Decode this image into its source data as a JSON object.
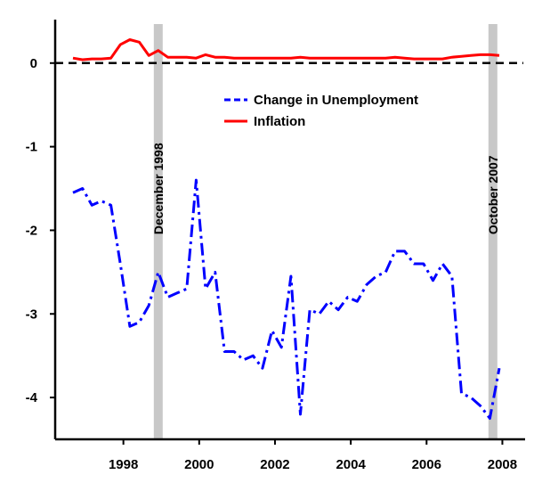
{
  "chart_data": {
    "type": "line",
    "title": "",
    "xlabel": "",
    "ylabel": "",
    "xlim": [
      1996.2,
      2008.6
    ],
    "ylim": [
      -4.5,
      0.52
    ],
    "x_ticks": [
      1998,
      2000,
      2002,
      2004,
      2006,
      2008
    ],
    "y_ticks": [
      0,
      -1,
      -2,
      -3,
      -4
    ],
    "y_tick_labels": [
      "0",
      "-1",
      "-2",
      "-3",
      "-4"
    ],
    "grid": false,
    "zero_line": {
      "y": 0,
      "style": "dashed",
      "color": "#000000"
    },
    "events": [
      {
        "label": "December 1998",
        "x": 1998.92
      },
      {
        "label": "October 2007",
        "x": 2007.75
      }
    ],
    "legend": {
      "placement": "top-center",
      "items": [
        {
          "label": "Change in Unemployment",
          "color": "#0000ff",
          "style": "dashdot"
        },
        {
          "label": "Inflation",
          "color": "#ff0000",
          "style": "solid"
        }
      ]
    },
    "series": [
      {
        "name": "Change in Unemployment",
        "color": "#0000ff",
        "style": "dashdot",
        "x": [
          1996.67,
          1996.92,
          1997.17,
          1997.42,
          1997.67,
          1997.92,
          1998.17,
          1998.42,
          1998.67,
          1998.92,
          1999.17,
          1999.42,
          1999.67,
          1999.92,
          2000.17,
          2000.42,
          2000.67,
          2000.92,
          2001.17,
          2001.42,
          2001.67,
          2001.92,
          2002.17,
          2002.42,
          2002.67,
          2002.92,
          2003.17,
          2003.42,
          2003.67,
          2003.92,
          2004.17,
          2004.42,
          2004.67,
          2004.92,
          2005.17,
          2005.42,
          2005.67,
          2005.92,
          2006.17,
          2006.42,
          2006.67,
          2006.92,
          2007.17,
          2007.42,
          2007.67,
          2007.92
        ],
        "values": [
          -1.55,
          -1.5,
          -1.7,
          -1.65,
          -1.7,
          -2.4,
          -3.15,
          -3.1,
          -2.9,
          -2.5,
          -2.8,
          -2.75,
          -2.7,
          -1.4,
          -2.7,
          -2.5,
          -3.45,
          -3.45,
          -3.55,
          -3.5,
          -3.65,
          -3.2,
          -3.4,
          -2.55,
          -4.2,
          -2.95,
          -3.0,
          -2.85,
          -2.95,
          -2.8,
          -2.85,
          -2.65,
          -2.55,
          -2.5,
          -2.25,
          -2.25,
          -2.4,
          -2.4,
          -2.6,
          -2.4,
          -2.55,
          -3.95,
          -4.0,
          -4.1,
          -4.25,
          -3.65
        ]
      },
      {
        "name": "Inflation",
        "color": "#ff0000",
        "style": "solid",
        "x": [
          1996.67,
          1996.92,
          1997.17,
          1997.42,
          1997.67,
          1997.92,
          1998.17,
          1998.42,
          1998.67,
          1998.92,
          1999.17,
          1999.42,
          1999.67,
          1999.92,
          2000.17,
          2000.42,
          2000.67,
          2000.92,
          2001.17,
          2001.42,
          2001.67,
          2001.92,
          2002.17,
          2002.42,
          2002.67,
          2002.92,
          2003.17,
          2003.42,
          2003.67,
          2003.92,
          2004.17,
          2004.42,
          2004.67,
          2004.92,
          2005.17,
          2005.42,
          2005.67,
          2005.92,
          2006.17,
          2006.42,
          2006.67,
          2006.92,
          2007.17,
          2007.42,
          2007.67,
          2007.92
        ],
        "values": [
          0.06,
          0.04,
          0.05,
          0.05,
          0.06,
          0.22,
          0.28,
          0.25,
          0.09,
          0.15,
          0.07,
          0.07,
          0.07,
          0.06,
          0.1,
          0.07,
          0.07,
          0.06,
          0.06,
          0.06,
          0.06,
          0.06,
          0.06,
          0.06,
          0.07,
          0.06,
          0.06,
          0.06,
          0.06,
          0.06,
          0.06,
          0.06,
          0.06,
          0.06,
          0.07,
          0.06,
          0.05,
          0.05,
          0.05,
          0.05,
          0.07,
          0.08,
          0.09,
          0.1,
          0.1,
          0.09
        ]
      }
    ]
  }
}
